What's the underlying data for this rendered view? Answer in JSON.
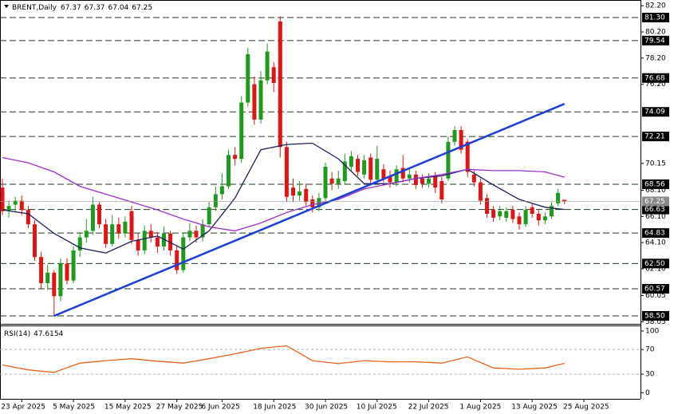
{
  "chart_data": {
    "type": "candlestick",
    "title": "BRENT,Daily",
    "categories": [
      null,
      null,
      null,
      "23 Apr 2025",
      null,
      null,
      null,
      null,
      null,
      null,
      null,
      "5 May 2025",
      null,
      null,
      null,
      null,
      null,
      null,
      null,
      "15 May 2025",
      null,
      null,
      null,
      null,
      null,
      null,
      null,
      "27 May 2025",
      null,
      null,
      null,
      null,
      null,
      null,
      "6 Jun 2025",
      null,
      null,
      null,
      null,
      null,
      null,
      null,
      "18 Jun 2025",
      null,
      null,
      null,
      null,
      null,
      null,
      null,
      "30 Jun 2025",
      null,
      null,
      null,
      null,
      null,
      null,
      null,
      "10 Jul 2025",
      null,
      null,
      null,
      null,
      null,
      null,
      null,
      "22 Jul 2025",
      null,
      null,
      null,
      null,
      null,
      null,
      null,
      "1 Aug 2025",
      null,
      null,
      null,
      null,
      null,
      null,
      null,
      "13 Aug 2025",
      null,
      null,
      null,
      null,
      null,
      null,
      null,
      "25 Aug 2025"
    ],
    "series": [
      {
        "up_color": "#1e9a1e",
        "down_color": "#e01414",
        "open": [
          68.3,
          66.5,
          67.0,
          67.3,
          66.6,
          65.5,
          63.0,
          61.0,
          61.8,
          60.0,
          62.5,
          61.2,
          63.5,
          64.5,
          65.0,
          67.0,
          65.5,
          64.0,
          65.5,
          64.8,
          66.5,
          64.3,
          63.5,
          65.0,
          64.5,
          63.8,
          64.8,
          63.5,
          62.0,
          64.5,
          65.0,
          64.5,
          65.5,
          66.8,
          67.8,
          68.4,
          70.8,
          70.5,
          74.8,
          76.2,
          73.5,
          76.5,
          77.5,
          81.0,
          71.4,
          68.3,
          67.7,
          68.2,
          67.4,
          66.8,
          67.5,
          69.0,
          68.6,
          68.8,
          69.9,
          70.5,
          69.3,
          70.6,
          68.9,
          69.7,
          69.2,
          68.7,
          69.8,
          69.0,
          69.3,
          69.0,
          68.6,
          69.2,
          68.8,
          69.0,
          71.8,
          72.7,
          71.8,
          69.3,
          68.7,
          67.5,
          66.6,
          66.1,
          66.0,
          66.6,
          66.1,
          65.5,
          66.8,
          66.3,
          65.8,
          66.1,
          67.1,
          67.37,
          null,
          null,
          null
        ],
        "high": [
          69.0,
          67.3,
          67.6,
          67.7,
          66.9,
          65.8,
          63.4,
          62.4,
          62.0,
          62.9,
          62.9,
          63.8,
          64.9,
          65.9,
          67.6,
          67.2,
          65.9,
          66.2,
          66.0,
          66.1,
          66.9,
          64.8,
          65.4,
          65.5,
          64.9,
          65.3,
          65.0,
          63.9,
          64.8,
          65.6,
          65.4,
          65.9,
          67.2,
          68.4,
          69.4,
          71.2,
          71.4,
          75.3,
          79.0,
          76.8,
          77.2,
          79.3,
          77.9,
          81.4,
          71.8,
          69.0,
          68.8,
          68.6,
          67.7,
          67.9,
          70.2,
          69.5,
          69.6,
          70.9,
          71.1,
          70.8,
          70.8,
          70.9,
          71.5,
          70.1,
          69.6,
          70.0,
          70.8,
          69.7,
          69.6,
          69.3,
          69.4,
          69.5,
          69.1,
          72.2,
          73.0,
          73.0,
          72.0,
          69.6,
          69.0,
          67.8,
          66.9,
          66.9,
          66.8,
          66.9,
          66.4,
          66.9,
          67.1,
          66.6,
          66.4,
          67.2,
          68.2,
          67.37,
          null,
          null,
          null
        ],
        "low": [
          66.2,
          66.0,
          66.5,
          66.2,
          65.2,
          62.7,
          60.6,
          60.5,
          58.5,
          59.6,
          60.9,
          61.0,
          63.0,
          64.1,
          64.7,
          65.2,
          63.7,
          63.8,
          64.4,
          64.5,
          64.0,
          63.1,
          63.2,
          64.1,
          63.3,
          63.5,
          63.1,
          61.7,
          61.8,
          64.2,
          64.1,
          64.2,
          65.3,
          66.5,
          67.4,
          68.2,
          70.0,
          70.2,
          74.5,
          73.1,
          73.2,
          76.2,
          75.6,
          70.6,
          67.2,
          67.2,
          67.3,
          66.9,
          66.4,
          66.5,
          67.3,
          68.1,
          68.2,
          68.5,
          69.6,
          69.2,
          69.0,
          68.6,
          68.6,
          68.7,
          68.3,
          68.4,
          68.7,
          68.7,
          68.2,
          68.3,
          68.3,
          67.9,
          67.1,
          68.8,
          71.5,
          70.9,
          69.1,
          68.4,
          67.0,
          66.0,
          65.7,
          65.8,
          65.7,
          65.6,
          65.1,
          65.3,
          66.0,
          65.4,
          65.5,
          65.9,
          66.9,
          67.04,
          null,
          null,
          null
        ],
        "close": [
          66.5,
          66.9,
          67.3,
          66.6,
          65.5,
          63.0,
          61.0,
          61.8,
          60.0,
          62.5,
          61.2,
          63.5,
          64.5,
          65.0,
          67.0,
          65.5,
          64.0,
          65.5,
          64.8,
          65.7,
          64.3,
          63.5,
          65.0,
          64.5,
          63.8,
          64.8,
          63.5,
          62.0,
          64.5,
          65.0,
          64.5,
          65.5,
          66.8,
          67.8,
          68.4,
          70.8,
          70.5,
          74.8,
          78.5,
          73.5,
          76.5,
          78.7,
          76.3,
          71.4,
          67.6,
          67.7,
          68.0,
          67.2,
          66.8,
          67.5,
          69.9,
          68.6,
          69.0,
          70.3,
          70.7,
          69.5,
          70.4,
          68.9,
          70.5,
          69.0,
          68.7,
          69.7,
          69.0,
          69.3,
          68.5,
          68.6,
          69.0,
          68.3,
          67.4,
          71.8,
          72.7,
          71.2,
          69.5,
          68.7,
          67.3,
          66.3,
          66.0,
          66.5,
          66.5,
          65.9,
          65.5,
          66.6,
          66.3,
          65.8,
          66.1,
          66.9,
          67.9,
          67.25,
          null,
          null,
          null
        ]
      }
    ],
    "moving_averages": [
      {
        "color": "#1b1f5a",
        "x": [
          0,
          4,
          8,
          12,
          16,
          20,
          24,
          28,
          32,
          36,
          40,
          44,
          48,
          52,
          56,
          60,
          64,
          68,
          72,
          76,
          80,
          84,
          87
        ],
        "values": [
          66.6,
          66.3,
          64.8,
          63.7,
          63.3,
          64.2,
          64.6,
          63.6,
          65.0,
          67.5,
          71.2,
          71.6,
          71.7,
          70.5,
          68.6,
          68.6,
          69.0,
          69.2,
          69.7,
          68.5,
          67.4,
          66.8,
          66.63
        ]
      },
      {
        "color": "#9b30c8",
        "x": [
          0,
          4,
          8,
          12,
          16,
          20,
          24,
          28,
          32,
          36,
          40,
          44,
          48,
          52,
          56,
          60,
          64,
          68,
          72,
          76,
          80,
          84,
          87
        ],
        "values": [
          70.6,
          70.2,
          69.5,
          68.4,
          67.8,
          67.2,
          66.6,
          65.9,
          65.3,
          65.0,
          65.6,
          66.4,
          67.0,
          67.4,
          68.2,
          68.6,
          69.0,
          69.3,
          69.7,
          69.6,
          69.6,
          69.5,
          69.1
        ]
      }
    ],
    "trendline": {
      "color": "#1e3fd6",
      "x": [
        8,
        87
      ],
      "values": [
        58.5,
        74.7
      ]
    },
    "levels": [
      {
        "value": 81.3,
        "label": "81.30"
      },
      {
        "value": 79.54,
        "label": "79.54"
      },
      {
        "value": 76.68,
        "label": "76.68"
      },
      {
        "value": 74.09,
        "label": "74.09"
      },
      {
        "value": 72.21,
        "label": "72.21"
      },
      {
        "value": 68.56,
        "label": "68.56"
      },
      {
        "value": 66.63,
        "label": "66.63"
      },
      {
        "value": 64.83,
        "label": "64.83"
      },
      {
        "value": 62.5,
        "label": "62.50"
      },
      {
        "value": 60.57,
        "label": "60.57"
      },
      {
        "value": 58.5,
        "label": "58.50"
      }
    ],
    "ylim": [
      57.95,
      82.64
    ],
    "yticks": [
      {
        "value": 82.2,
        "label": "82.20"
      },
      {
        "value": 80.2,
        "label": "80.20"
      },
      {
        "value": 78.2,
        "label": "78.20"
      },
      {
        "value": 76.2,
        "label": "76.20"
      },
      {
        "value": 70.15,
        "label": "70.15"
      },
      {
        "value": 68.1,
        "label": "68.10"
      },
      {
        "value": 66.1,
        "label": "66.10"
      },
      {
        "value": 64.1,
        "label": "64.10"
      },
      {
        "value": 62.1,
        "label": "62.10"
      },
      {
        "value": 60.05,
        "label": "60.05"
      },
      {
        "value": 58.05,
        "label": "58.05"
      }
    ],
    "rsi": {
      "title": "RSI(14)",
      "color": "#e8621e",
      "x": [
        0,
        4,
        8,
        12,
        16,
        20,
        24,
        28,
        32,
        36,
        40,
        44,
        48,
        52,
        56,
        60,
        64,
        68,
        72,
        76,
        80,
        84,
        87
      ],
      "values": [
        45,
        37,
        33,
        48,
        52,
        55,
        51,
        48,
        55,
        63,
        72,
        76,
        52,
        47,
        52,
        50,
        50,
        48,
        58,
        40,
        38,
        40,
        47.6154
      ],
      "ylim": [
        -10,
        109
      ],
      "yticks": [
        100,
        70,
        30,
        0
      ],
      "levels": [
        70,
        30
      ]
    }
  }
}
